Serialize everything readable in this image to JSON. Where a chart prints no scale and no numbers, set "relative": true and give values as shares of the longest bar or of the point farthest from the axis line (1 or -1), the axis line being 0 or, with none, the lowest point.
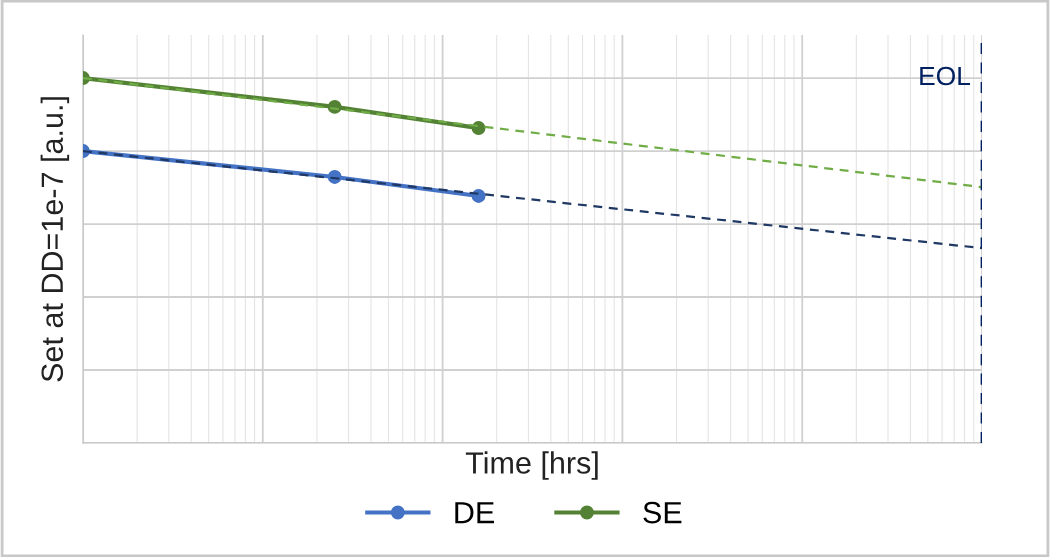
{
  "chart_data": {
    "type": "line",
    "xlabel": "Time [hrs]",
    "ylabel": "Set at DD=1e-7 [a.u.]",
    "relative": true,
    "categories": [
      null,
      null,
      null,
      null,
      null,
      null,
      null,
      null,
      null,
      null,
      null,
      null,
      null,
      null,
      null,
      null,
      null,
      null,
      null,
      null,
      null,
      null,
      null,
      null,
      null,
      null
    ],
    "tick_labels": false,
    "grid": true,
    "legend": "bottom",
    "marker": "circle",
    "series": [
      {
        "name": "DE",
        "color": "#4472c4",
        "values": [
          0.8,
          null,
          null,
          null,
          null,
          null,
          null,
          0.729,
          null,
          null,
          null,
          0.677,
          null,
          null,
          null,
          null,
          null,
          null,
          null,
          null,
          null,
          null,
          null,
          null,
          null,
          null
        ]
      },
      {
        "name": "SE",
        "color": "#548235",
        "values": [
          1.0,
          null,
          null,
          null,
          null,
          null,
          null,
          0.921,
          null,
          null,
          null,
          0.863,
          null,
          null,
          null,
          null,
          null,
          null,
          null,
          null,
          null,
          null,
          null,
          null,
          null,
          null
        ]
      },
      {
        "type": "line",
        "color": "#1f3864",
        "line_style": "dashed",
        "marker": "none",
        "values": [
          0.8,
          null,
          null,
          null,
          null,
          null,
          null,
          null,
          null,
          null,
          null,
          null,
          null,
          null,
          null,
          null,
          null,
          null,
          null,
          null,
          null,
          null,
          null,
          null,
          null,
          0.534
        ]
      },
      {
        "type": "line",
        "color": "#70ad47",
        "line_style": "dashed",
        "marker": "none",
        "values": [
          1.0,
          null,
          null,
          null,
          null,
          null,
          null,
          null,
          null,
          null,
          null,
          null,
          null,
          null,
          null,
          null,
          null,
          null,
          null,
          null,
          null,
          null,
          null,
          null,
          null,
          0.701
        ]
      }
    ],
    "ref_lines": [
      {
        "axis": "x",
        "label": "EOL",
        "color": "#002060",
        "line_style": "dashed"
      }
    ]
  }
}
